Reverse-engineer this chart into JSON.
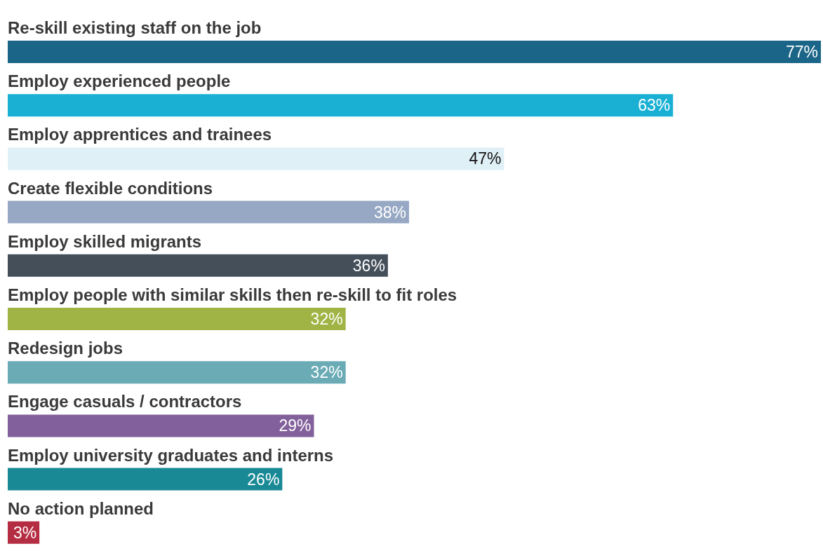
{
  "chart_data": {
    "type": "bar",
    "orientation": "horizontal",
    "categories": [
      "Re-skill existing staff on the job",
      "Employ experienced people",
      "Employ apprentices and trainees",
      "Create flexible conditions",
      "Employ skilled migrants",
      "Employ people with similar skills then re-skill to fit roles",
      "Redesign jobs",
      "Engage casuals / contractors",
      "Employ university graduates and interns",
      "No action planned"
    ],
    "values": [
      77,
      63,
      47,
      38,
      36,
      32,
      32,
      29,
      26,
      3
    ],
    "value_labels": [
      "77%",
      "63%",
      "47%",
      "38%",
      "36%",
      "32%",
      "32%",
      "29%",
      "26%",
      "3%"
    ],
    "colors": [
      "#1b6688",
      "#1ab0d4",
      "#dff0f6",
      "#97a8c4",
      "#444f5a",
      "#9fb444",
      "#6aabb5",
      "#82609b",
      "#198996",
      "#b52d42"
    ],
    "grid": false,
    "legend": false
  }
}
